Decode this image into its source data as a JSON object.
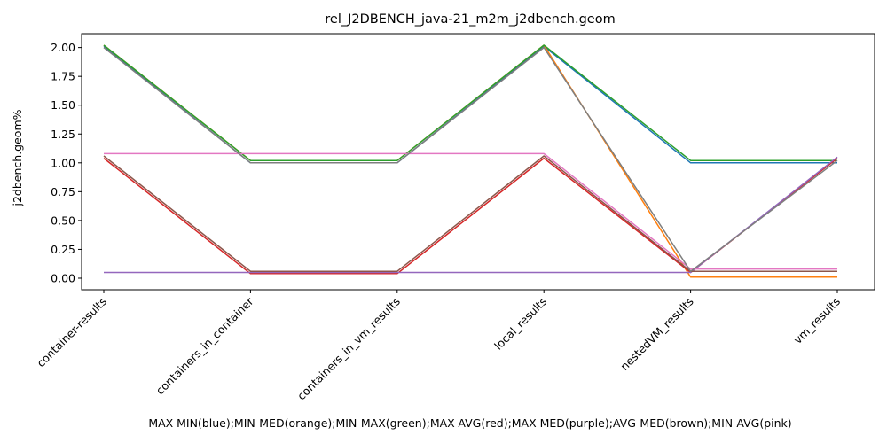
{
  "chart_data": {
    "type": "line",
    "title": "rel_J2DBENCH_java-21_m2m_j2dbench.geom",
    "xlabel": "MAX-MIN(blue);MIN-MED(orange);MIN-MAX(green);MAX-AVG(red);MAX-MED(purple);AVG-MED(brown);MIN-AVG(pink)",
    "ylabel": "j2dbench.geom%",
    "categories": [
      "container-results",
      "containers_in_container",
      "containers_in_vm_results",
      "local_results",
      "nestedVM_results",
      "vm_results"
    ],
    "ylim": [
      -0.1,
      2.12
    ],
    "yticks": [
      "0.00",
      "0.25",
      "0.50",
      "0.75",
      "1.00",
      "1.25",
      "1.50",
      "1.75",
      "2.00"
    ],
    "grid": false,
    "legend": "none",
    "series": [
      {
        "color": "#1f77b4",
        "values": [
          2.01,
          1.0,
          1.0,
          2.01,
          1.0,
          1.0
        ]
      },
      {
        "color": "#ff7f0e",
        "values": [
          2.02,
          1.02,
          1.02,
          2.02,
          0.01,
          0.01
        ]
      },
      {
        "color": "#2ca02c",
        "values": [
          2.02,
          1.02,
          1.02,
          2.02,
          1.02,
          1.02
        ]
      },
      {
        "color": "#d62728",
        "values": [
          1.04,
          0.04,
          0.04,
          1.04,
          0.05,
          1.04
        ]
      },
      {
        "color": "#9467bd",
        "values": [
          0.05,
          0.05,
          0.05,
          0.05,
          0.05,
          1.05
        ]
      },
      {
        "color": "#8c564b",
        "values": [
          1.06,
          0.06,
          0.06,
          1.06,
          0.06,
          0.06
        ]
      },
      {
        "color": "#e377c2",
        "values": [
          1.08,
          1.08,
          1.08,
          1.08,
          0.08,
          0.08
        ]
      },
      {
        "color": "#7f7f7f",
        "values": [
          2.0,
          1.0,
          1.0,
          2.0,
          0.06,
          1.02
        ]
      }
    ]
  }
}
